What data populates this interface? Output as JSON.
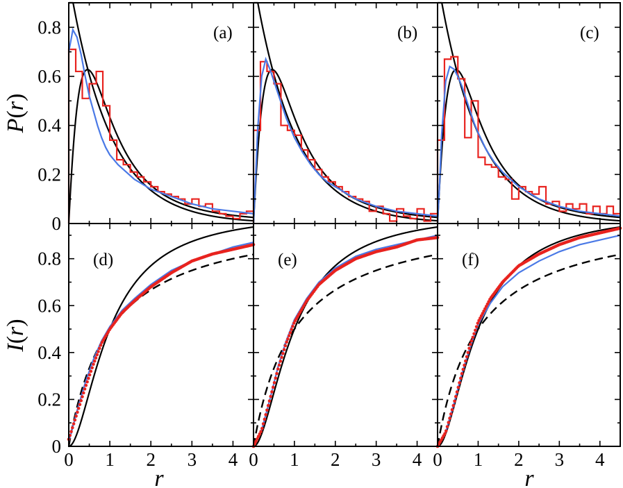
{
  "chart_data": {
    "type": "line",
    "layout": "2 rows x 3 columns, shared axes",
    "xlabel": "r",
    "xlim": [
      0,
      4.5
    ],
    "x_ticks": [
      0,
      1,
      2,
      3,
      4
    ],
    "colors": {
      "theory": "#000000",
      "histogram": "#e8231f",
      "data_blue": "#4a79e6",
      "data_points": "#e8231f"
    },
    "rows": [
      {
        "ylabel": "P",
        "ylabel_paren_open": "(",
        "ylabel_var": "r",
        "ylabel_paren_close": ")",
        "ylim": [
          0,
          0.9
        ],
        "y_ticks": [
          0,
          0.2,
          0.4,
          0.6,
          0.8
        ],
        "y_tick_labels": [
          "0",
          "0.2",
          "0.4",
          "0.6",
          "0.8"
        ]
      },
      {
        "ylabel": "I",
        "ylabel_paren_open": "(",
        "ylabel_var": "r",
        "ylabel_paren_close": ")",
        "ylim": [
          0,
          0.95
        ],
        "y_ticks": [
          0,
          0.2,
          0.4,
          0.6,
          0.8
        ],
        "y_tick_labels": [
          "0",
          "0.2",
          "0.4",
          "0.6",
          "0.8"
        ]
      }
    ],
    "panels": [
      {
        "label": "(a)",
        "row": 0,
        "col": 0,
        "histogram_edges": [
          0,
          0.17,
          0.33,
          0.5,
          0.67,
          0.83,
          1.0,
          1.17,
          1.33,
          1.5,
          1.67,
          1.83,
          2.0,
          2.17,
          2.33,
          2.5,
          2.67,
          2.83,
          3.0,
          3.17,
          3.33,
          3.5,
          3.67,
          3.83,
          4.0,
          4.17,
          4.33,
          4.5
        ],
        "histogram_values": [
          0.71,
          0.62,
          0.51,
          0.57,
          0.62,
          0.48,
          0.34,
          0.26,
          0.24,
          0.21,
          0.19,
          0.17,
          0.15,
          0.13,
          0.12,
          0.11,
          0.1,
          0.08,
          0.1,
          0.07,
          0.08,
          0.05,
          0.04,
          0.03,
          0.02,
          0.04,
          0.05
        ],
        "blue_x": [
          0,
          0.1,
          0.2,
          0.3,
          0.4,
          0.5,
          0.6,
          0.7,
          0.8,
          0.9,
          1.0,
          1.2,
          1.4,
          1.6,
          1.8,
          2.0,
          2.5,
          3.0,
          3.5,
          4.0,
          4.5
        ],
        "blue_y": [
          0.7,
          0.79,
          0.76,
          0.69,
          0.6,
          0.52,
          0.46,
          0.4,
          0.35,
          0.31,
          0.28,
          0.24,
          0.21,
          0.18,
          0.16,
          0.14,
          0.11,
          0.08,
          0.06,
          0.05,
          0.04
        ]
      },
      {
        "label": "(b)",
        "row": 0,
        "col": 1,
        "histogram_edges": [
          0,
          0.17,
          0.33,
          0.5,
          0.67,
          0.83,
          1.0,
          1.17,
          1.33,
          1.5,
          1.67,
          1.83,
          2.0,
          2.17,
          2.33,
          2.5,
          2.67,
          2.83,
          3.0,
          3.17,
          3.33,
          3.5,
          3.67,
          3.83,
          4.0,
          4.17,
          4.33,
          4.5
        ],
        "histogram_values": [
          0.38,
          0.66,
          0.62,
          0.57,
          0.4,
          0.38,
          0.36,
          0.3,
          0.26,
          0.22,
          0.19,
          0.17,
          0.15,
          0.13,
          0.11,
          0.1,
          0.09,
          0.05,
          0.07,
          0.04,
          0.01,
          0.06,
          0.03,
          0.02,
          0.06,
          0.01,
          0.04
        ],
        "blue_x": [
          0,
          0.05,
          0.1,
          0.2,
          0.3,
          0.4,
          0.5,
          0.6,
          0.7,
          0.8,
          0.9,
          1.0,
          1.2,
          1.4,
          1.6,
          1.8,
          2.0,
          2.5,
          3.0,
          3.5,
          4.0,
          4.5
        ],
        "blue_y": [
          0.0,
          0.18,
          0.38,
          0.6,
          0.67,
          0.63,
          0.58,
          0.53,
          0.48,
          0.43,
          0.39,
          0.35,
          0.29,
          0.24,
          0.2,
          0.17,
          0.15,
          0.1,
          0.07,
          0.05,
          0.04,
          0.03
        ]
      },
      {
        "label": "(c)",
        "row": 0,
        "col": 2,
        "histogram_edges": [
          0,
          0.17,
          0.33,
          0.5,
          0.67,
          0.83,
          1.0,
          1.17,
          1.33,
          1.5,
          1.67,
          1.83,
          2.0,
          2.17,
          2.33,
          2.5,
          2.67,
          2.83,
          3.0,
          3.17,
          3.33,
          3.5,
          3.67,
          3.83,
          4.0,
          4.17,
          4.33,
          4.5
        ],
        "histogram_values": [
          0.34,
          0.67,
          0.68,
          0.59,
          0.35,
          0.5,
          0.27,
          0.24,
          0.23,
          0.19,
          0.18,
          0.1,
          0.15,
          0.13,
          0.12,
          0.15,
          0.08,
          0.09,
          0.05,
          0.08,
          0.06,
          0.08,
          0.04,
          0.07,
          0.04,
          0.07,
          0.04
        ],
        "blue_x": [
          0,
          0.05,
          0.1,
          0.2,
          0.3,
          0.4,
          0.5,
          0.6,
          0.7,
          0.8,
          0.9,
          1.0,
          1.2,
          1.4,
          1.6,
          1.8,
          2.0,
          2.5,
          3.0,
          3.5,
          4.0,
          4.5
        ],
        "blue_y": [
          0.0,
          0.16,
          0.36,
          0.58,
          0.64,
          0.63,
          0.6,
          0.56,
          0.51,
          0.46,
          0.41,
          0.37,
          0.3,
          0.25,
          0.21,
          0.18,
          0.15,
          0.1,
          0.07,
          0.05,
          0.04,
          0.03
        ]
      },
      {
        "label": "(d)",
        "row": 1,
        "col": 0,
        "blue_x": [
          0,
          0.2,
          0.4,
          0.6,
          0.8,
          1.0,
          1.3,
          1.6,
          2.0,
          2.5,
          3.0,
          3.5,
          4.0,
          4.5
        ],
        "blue_y": [
          0.02,
          0.15,
          0.27,
          0.37,
          0.45,
          0.51,
          0.58,
          0.63,
          0.69,
          0.75,
          0.79,
          0.82,
          0.85,
          0.87
        ],
        "points_x": [
          0,
          0.2,
          0.4,
          0.6,
          0.8,
          1.0,
          1.3,
          1.6,
          2.0,
          2.5,
          3.0,
          3.5,
          4.0,
          4.5
        ],
        "points_y": [
          0.03,
          0.14,
          0.25,
          0.35,
          0.44,
          0.5,
          0.57,
          0.62,
          0.68,
          0.74,
          0.79,
          0.82,
          0.84,
          0.86
        ]
      },
      {
        "label": "(e)",
        "row": 1,
        "col": 1,
        "blue_x": [
          0,
          0.2,
          0.4,
          0.6,
          0.8,
          1.0,
          1.3,
          1.6,
          2.0,
          2.5,
          3.0,
          3.5,
          4.0,
          4.5
        ],
        "blue_y": [
          0.0,
          0.07,
          0.2,
          0.34,
          0.45,
          0.54,
          0.63,
          0.7,
          0.76,
          0.81,
          0.84,
          0.86,
          0.88,
          0.9
        ],
        "points_x": [
          0,
          0.2,
          0.4,
          0.6,
          0.8,
          1.0,
          1.3,
          1.6,
          2.0,
          2.5,
          3.0,
          3.5,
          4.0,
          4.5
        ],
        "points_y": [
          0.0,
          0.07,
          0.2,
          0.33,
          0.44,
          0.53,
          0.62,
          0.69,
          0.75,
          0.8,
          0.83,
          0.85,
          0.88,
          0.89
        ]
      },
      {
        "label": "(f)",
        "row": 1,
        "col": 2,
        "blue_x": [
          0,
          0.2,
          0.4,
          0.6,
          0.8,
          1.0,
          1.3,
          1.6,
          2.0,
          2.5,
          3.0,
          3.5,
          4.0,
          4.5
        ],
        "blue_y": [
          0.0,
          0.06,
          0.18,
          0.31,
          0.42,
          0.52,
          0.61,
          0.68,
          0.74,
          0.79,
          0.83,
          0.86,
          0.88,
          0.9
        ],
        "points_x": [
          0,
          0.2,
          0.4,
          0.6,
          0.8,
          1.0,
          1.3,
          1.6,
          2.0,
          2.5,
          3.0,
          3.5,
          4.0,
          4.5
        ],
        "points_y": [
          0.0,
          0.06,
          0.18,
          0.31,
          0.43,
          0.53,
          0.63,
          0.7,
          0.77,
          0.82,
          0.86,
          0.89,
          0.91,
          0.93
        ]
      }
    ],
    "reference_curves": {
      "P_poisson": "exp(-r)",
      "P_goe": "(27/8)(r+r^2)/(1+r+r^2)^2.5",
      "I_poisson": "r/(1+r)",
      "I_goe": "integral of P_goe"
    }
  }
}
